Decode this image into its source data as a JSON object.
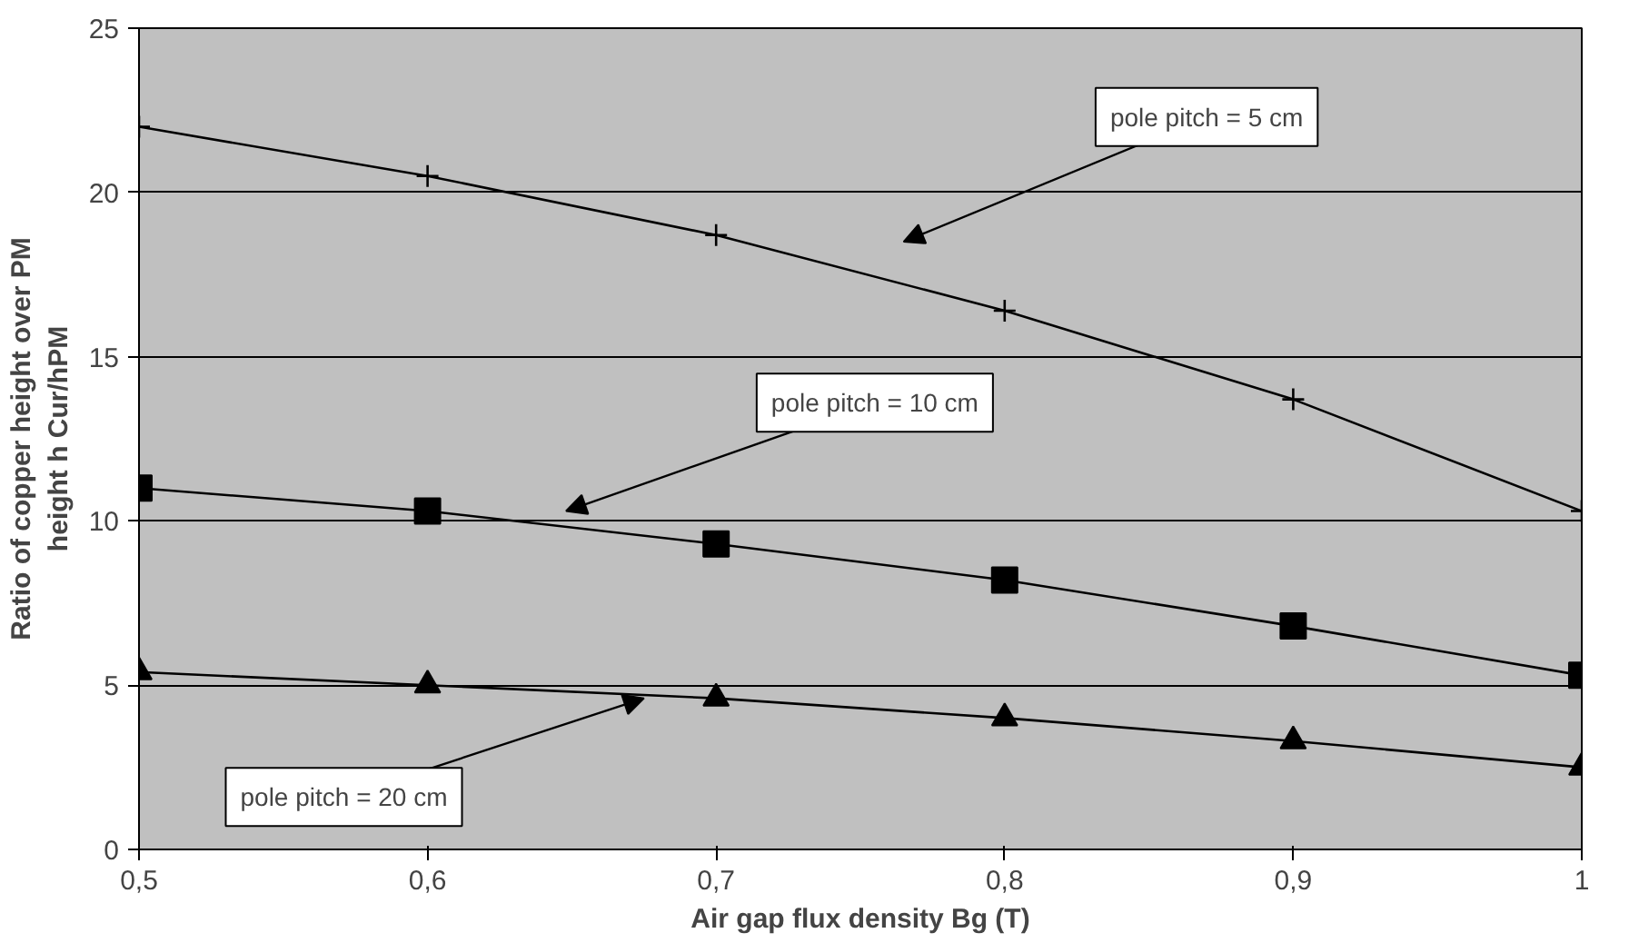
{
  "chart_data": {
    "type": "line",
    "xlabel": "Air gap flux density Bg (T)",
    "ylabel": "Ratio of copper height over PM\nheight h Cur/hPM",
    "x": [
      0.5,
      0.6,
      0.7,
      0.8,
      0.9,
      1.0
    ],
    "series": [
      {
        "color": "#000000",
        "marker": "cross",
        "values": [
          22,
          20.5,
          18.7,
          16.4,
          13.7,
          10.3
        ]
      },
      {
        "color": "#000000",
        "marker": "square",
        "values": [
          11,
          10.3,
          9.3,
          8.2,
          6.8,
          5.3
        ]
      },
      {
        "color": "#000000",
        "marker": "triangle",
        "values": [
          5.4,
          5.0,
          4.6,
          4.0,
          3.3,
          2.5
        ]
      }
    ],
    "xlim": [
      0.5,
      1.0
    ],
    "xticks": [
      {
        "value": 0.5,
        "label": "0,5"
      },
      {
        "value": 0.6,
        "label": "0,6"
      },
      {
        "value": 0.7,
        "label": "0,7"
      },
      {
        "value": 0.8,
        "label": "0,8"
      },
      {
        "value": 0.9,
        "label": "0,9"
      },
      1
    ],
    "ylim": [
      0,
      25
    ],
    "yticks": [
      0,
      5,
      10,
      15,
      20,
      25
    ],
    "grid": "y",
    "annotations": [
      "pole pitch = 5 cm",
      "pole pitch = 10 cm",
      {
        "text": "pole pitch = 20 cm",
        "x": 0.675,
        "y": 4.6
      }
    ]
  }
}
